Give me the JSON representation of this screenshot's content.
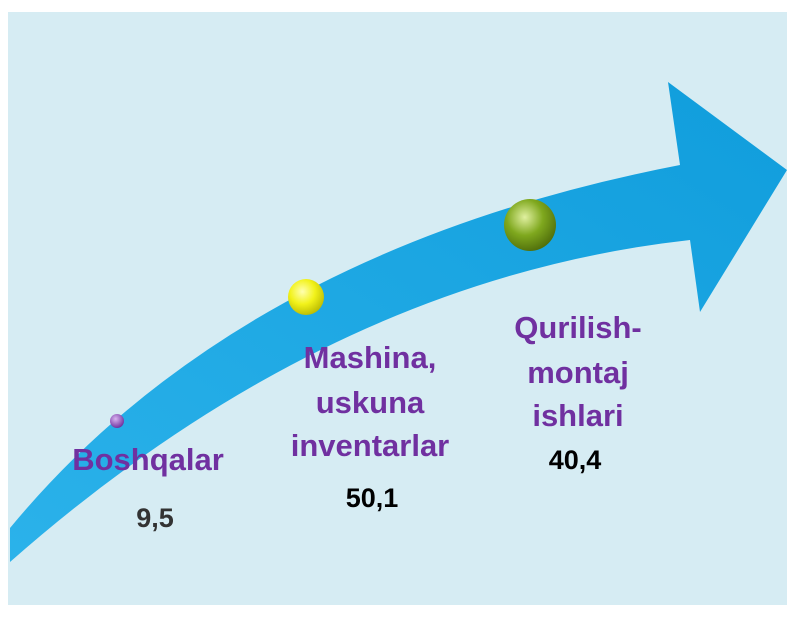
{
  "items": [
    {
      "label": [
        "Boshqalar"
      ],
      "value": "9,5"
    },
    {
      "label": [
        "Mashina,",
        "uskuna",
        "inventarlar"
      ],
      "value": "50,1"
    },
    {
      "label": [
        "Qurilish-",
        "montaj",
        "ishlari"
      ],
      "value": "40,4"
    }
  ]
}
